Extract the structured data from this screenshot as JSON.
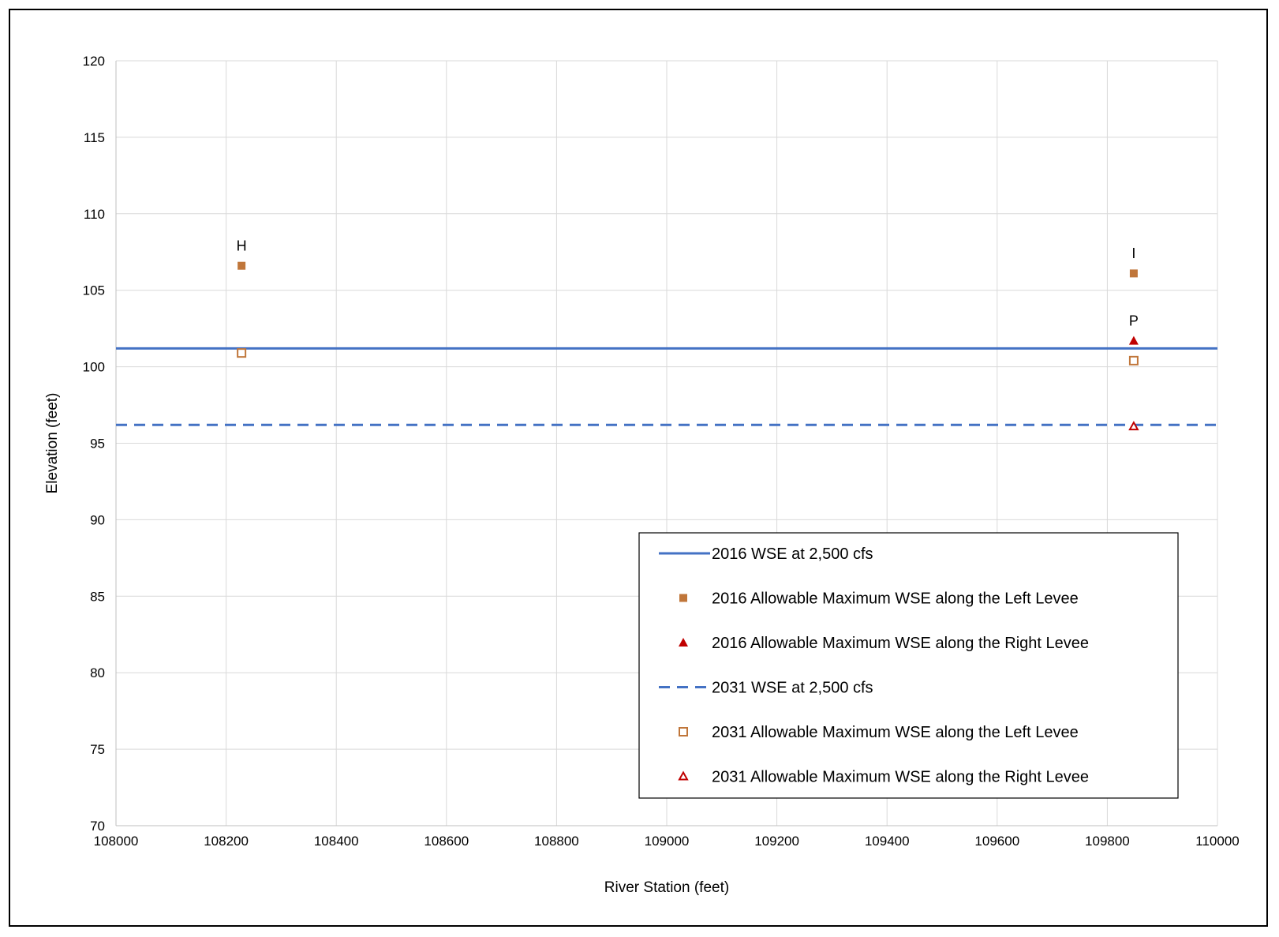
{
  "chart_data": {
    "type": "scatter",
    "title": "",
    "xlabel": "River Station (feet)",
    "ylabel": "Elevation (feet)",
    "xlim": [
      108000,
      110000
    ],
    "ylim": [
      70,
      120
    ],
    "xticks": [
      "108000",
      "108200",
      "108400",
      "108600",
      "108800",
      "109000",
      "109200",
      "109400",
      "109600",
      "109800",
      "110000"
    ],
    "yticks": [
      "70",
      "75",
      "80",
      "85",
      "90",
      "95",
      "100",
      "105",
      "110",
      "115",
      "120"
    ],
    "grid": true,
    "legend_position": "bottom-right",
    "series": [
      {
        "name": "2016 WSE at 2,500 cfs",
        "kind": "line",
        "style": "solid",
        "color": "#4472C4",
        "points": [
          [
            108000,
            101.2
          ],
          [
            110000,
            101.2
          ]
        ]
      },
      {
        "name": "2016 Allowable Maximum WSE along the Left Levee",
        "kind": "marker",
        "marker": "square-filled",
        "color": "#C0763A",
        "points": [
          [
            108228,
            106.6
          ],
          [
            109848,
            106.1
          ]
        ]
      },
      {
        "name": "2016 Allowable Maximum WSE along the Right Levee",
        "kind": "marker",
        "marker": "triangle-filled",
        "color": "#C00000",
        "points": [
          [
            109848,
            101.7
          ]
        ]
      },
      {
        "name": "2031 WSE at 2,500 cfs",
        "kind": "line",
        "style": "dashed",
        "color": "#4472C4",
        "points": [
          [
            108000,
            96.2
          ],
          [
            110000,
            96.2
          ]
        ]
      },
      {
        "name": "2031 Allowable Maximum WSE along the Left Levee",
        "kind": "marker",
        "marker": "square-open",
        "color": "#C0763A",
        "points": [
          [
            108228,
            100.9
          ],
          [
            109848,
            100.4
          ]
        ]
      },
      {
        "name": "2031 Allowable Maximum WSE along the Right Levee",
        "kind": "marker",
        "marker": "triangle-open",
        "color": "#C00000",
        "points": [
          [
            109848,
            96.1
          ]
        ]
      }
    ],
    "annotations": [
      {
        "text": "H",
        "x": 108228,
        "y": 107.6
      },
      {
        "text": "I",
        "x": 109848,
        "y": 107.1
      },
      {
        "text": "P",
        "x": 109848,
        "y": 102.7
      }
    ]
  }
}
